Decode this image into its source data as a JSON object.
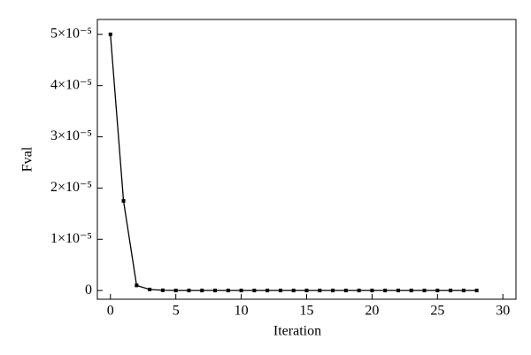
{
  "chart_data": {
    "type": "line",
    "x_label": "Iteration",
    "y_label": "Fval",
    "x": [
      0,
      1,
      2,
      3,
      4,
      5,
      6,
      7,
      8,
      9,
      10,
      11,
      12,
      13,
      14,
      15,
      16,
      17,
      18,
      19,
      20,
      21,
      22,
      23,
      24,
      25,
      26,
      27,
      28
    ],
    "series": [
      {
        "name": "Fval",
        "color": "#000000",
        "values": [
          5e-05,
          1.75e-05,
          1e-06,
          2e-07,
          5e-08,
          0,
          0,
          0,
          0,
          0,
          0,
          0,
          0,
          0,
          0,
          0,
          0,
          0,
          0,
          0,
          0,
          0,
          0,
          0,
          0,
          0,
          0,
          0,
          0
        ]
      }
    ],
    "xlim": [
      -1,
      31
    ],
    "xticks": [
      0,
      5,
      10,
      15,
      20,
      25,
      30
    ],
    "ylim": [
      -1.7e-06,
      5.29e-05
    ],
    "yticks": [
      0,
      {
        "value": 1e-05,
        "label": "1×10⁻⁵"
      },
      {
        "value": 2e-05,
        "label": "2×10⁻⁵"
      },
      {
        "value": 3e-05,
        "label": "3×10⁻⁵"
      },
      {
        "value": 4e-05,
        "label": "4×10⁻⁵"
      },
      {
        "value": 5e-05,
        "label": "5×10⁻⁵"
      }
    ],
    "grid": false
  }
}
